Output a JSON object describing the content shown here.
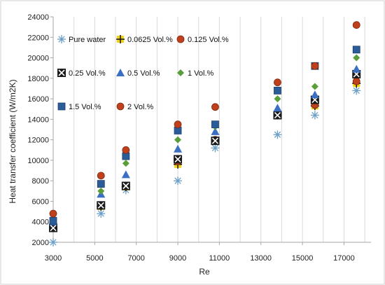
{
  "chart_data": {
    "type": "scatter",
    "title": "",
    "xlabel": "Re",
    "ylabel": "Heat transfer coefficient (W/m2K)",
    "xlim": [
      3000,
      18300
    ],
    "ylim": [
      2000,
      24000
    ],
    "xticks": [
      3000,
      5000,
      7000,
      9000,
      11000,
      13000,
      15000,
      17000
    ],
    "yticks": [
      2000,
      4000,
      6000,
      8000,
      10000,
      12000,
      14000,
      16000,
      18000,
      20000,
      22000,
      24000
    ],
    "grid": "vertical",
    "legend_position": "top-left inside",
    "x": [
      3000,
      5300,
      6500,
      9000,
      10800,
      13800,
      15600,
      17600
    ],
    "series": [
      {
        "name": "Pure water",
        "marker": "asterisk",
        "color": "#6a9fc8",
        "values": [
          2000,
          4800,
          7100,
          8000,
          11200,
          12500,
          14400,
          16800
        ]
      },
      {
        "name": "0.0625 Vol.%",
        "marker": "plus",
        "color": "#f2d40b",
        "values": [
          3600,
          5500,
          7400,
          9600,
          11900,
          14400,
          15300,
          17500
        ]
      },
      {
        "name": "0.125 Vol.%",
        "marker": "circle",
        "color": "#c1401c",
        "values": [
          3800,
          5600,
          7500,
          9900,
          12000,
          14500,
          15400,
          17700
        ]
      },
      {
        "name": "0.25 Vol.%",
        "marker": "boxx",
        "color": "#1a1a1a",
        "values": [
          3400,
          5600,
          7500,
          10100,
          11900,
          14400,
          15900,
          18400
        ]
      },
      {
        "name": "0.5 Vol.%",
        "marker": "triangle",
        "color": "#3a6fc4",
        "values": [
          4000,
          6700,
          8600,
          11100,
          12800,
          15100,
          16400,
          18900
        ]
      },
      {
        "name": "1 Vol.%",
        "marker": "diamond",
        "color": "#5a9e3a",
        "values": [
          4300,
          7000,
          9700,
          12000,
          13300,
          16000,
          17200,
          20000
        ]
      },
      {
        "name": "1.5 Vol.%",
        "marker": "square",
        "color": "#2b5c9a",
        "values": [
          4100,
          7700,
          10400,
          12900,
          13500,
          16800,
          19200,
          20800
        ]
      },
      {
        "name": "2 Vol.%",
        "marker": "circle",
        "color": "#c1401c",
        "values": [
          4800,
          8500,
          11000,
          13500,
          15200,
          17600,
          19200,
          23200
        ]
      }
    ]
  }
}
